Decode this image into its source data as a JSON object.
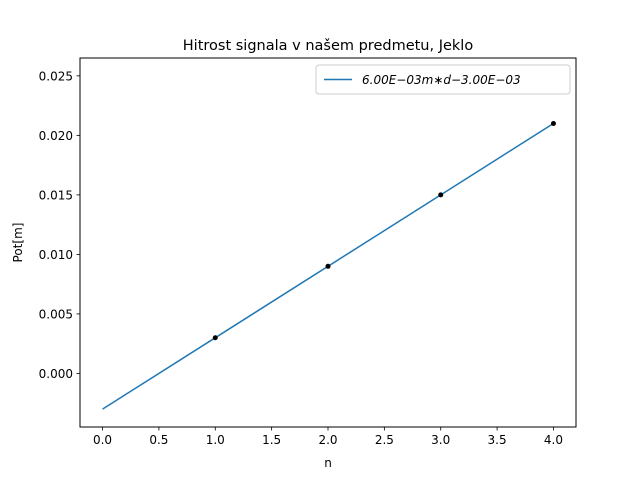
{
  "chart_data": {
    "type": "line",
    "title": "Hitrost signala v našem predmetu, Jeklo",
    "xlabel": "n",
    "ylabel": "Pot[m]",
    "xlim": [
      -0.2,
      4.2
    ],
    "ylim": [
      -0.0045,
      0.0265
    ],
    "xticks": [
      0.0,
      0.5,
      1.0,
      1.5,
      2.0,
      2.5,
      3.0,
      3.5,
      4.0
    ],
    "xtick_labels": [
      "0.0",
      "0.5",
      "1.0",
      "1.5",
      "2.0",
      "2.5",
      "3.0",
      "3.5",
      "4.0"
    ],
    "yticks": [
      0.0,
      0.005,
      0.01,
      0.015,
      0.02,
      0.025
    ],
    "ytick_labels": [
      "0.000",
      "0.005",
      "0.010",
      "0.015",
      "0.020",
      "0.025"
    ],
    "grid": false,
    "legend_position": "top-right",
    "series": [
      {
        "name": "6.00E−03m∗d−3.00E−03",
        "kind": "line",
        "color": "#1f77b4",
        "x": [
          0.0,
          4.0
        ],
        "y": [
          -0.003,
          0.021
        ]
      },
      {
        "kind": "scatter",
        "color": "#000000",
        "x": [
          1.0,
          2.0,
          3.0,
          4.0
        ],
        "y": [
          0.003,
          0.009,
          0.015,
          0.021
        ]
      }
    ]
  }
}
